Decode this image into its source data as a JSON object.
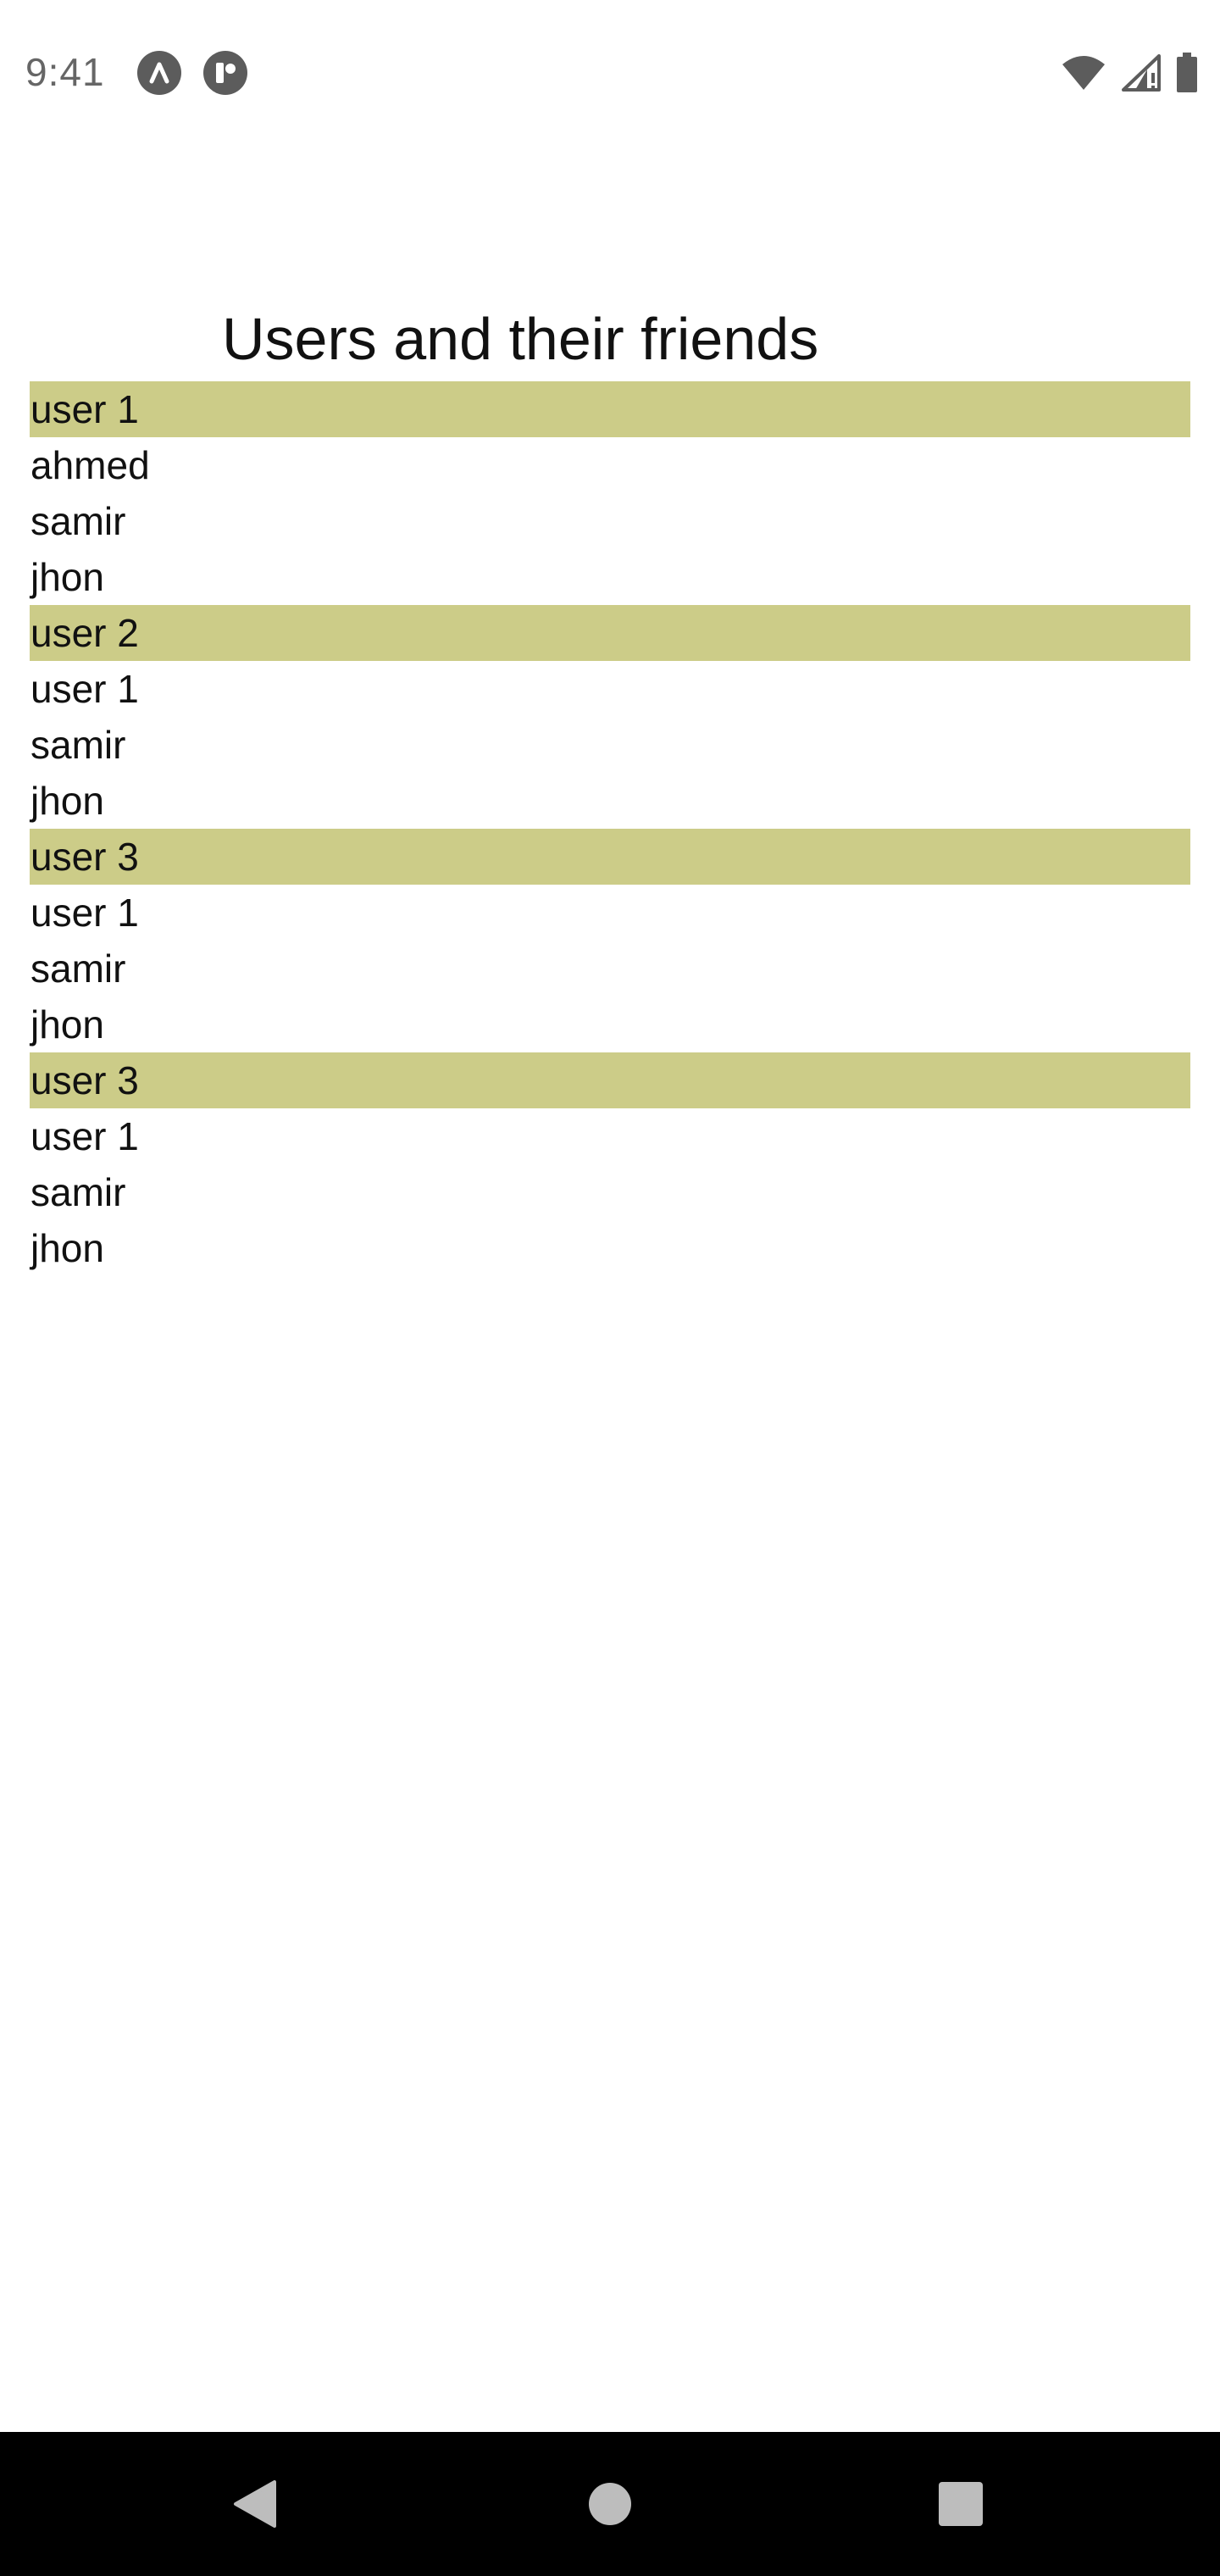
{
  "status_bar": {
    "time": "9:41",
    "icons": [
      "app-a-icon",
      "app-b-icon",
      "wifi-icon",
      "cellular-signal-icon",
      "battery-icon"
    ]
  },
  "page": {
    "title": "Users and their friends"
  },
  "groups": [
    {
      "user": "user 1",
      "friends": [
        "ahmed",
        "samir",
        "jhon"
      ]
    },
    {
      "user": "user 2",
      "friends": [
        "user 1",
        "samir",
        "jhon"
      ]
    },
    {
      "user": "user 3",
      "friends": [
        "user 1",
        "samir",
        "jhon"
      ]
    },
    {
      "user": "user 3",
      "friends": [
        "user 1",
        "samir",
        "jhon"
      ]
    }
  ],
  "nav_bar": {
    "buttons": [
      "back-icon",
      "home-icon",
      "recents-icon"
    ]
  },
  "colors": {
    "header_background": "#cccc88",
    "nav_background": "#000000",
    "nav_icons": "#bdbdbd",
    "status_text": "#666666"
  }
}
